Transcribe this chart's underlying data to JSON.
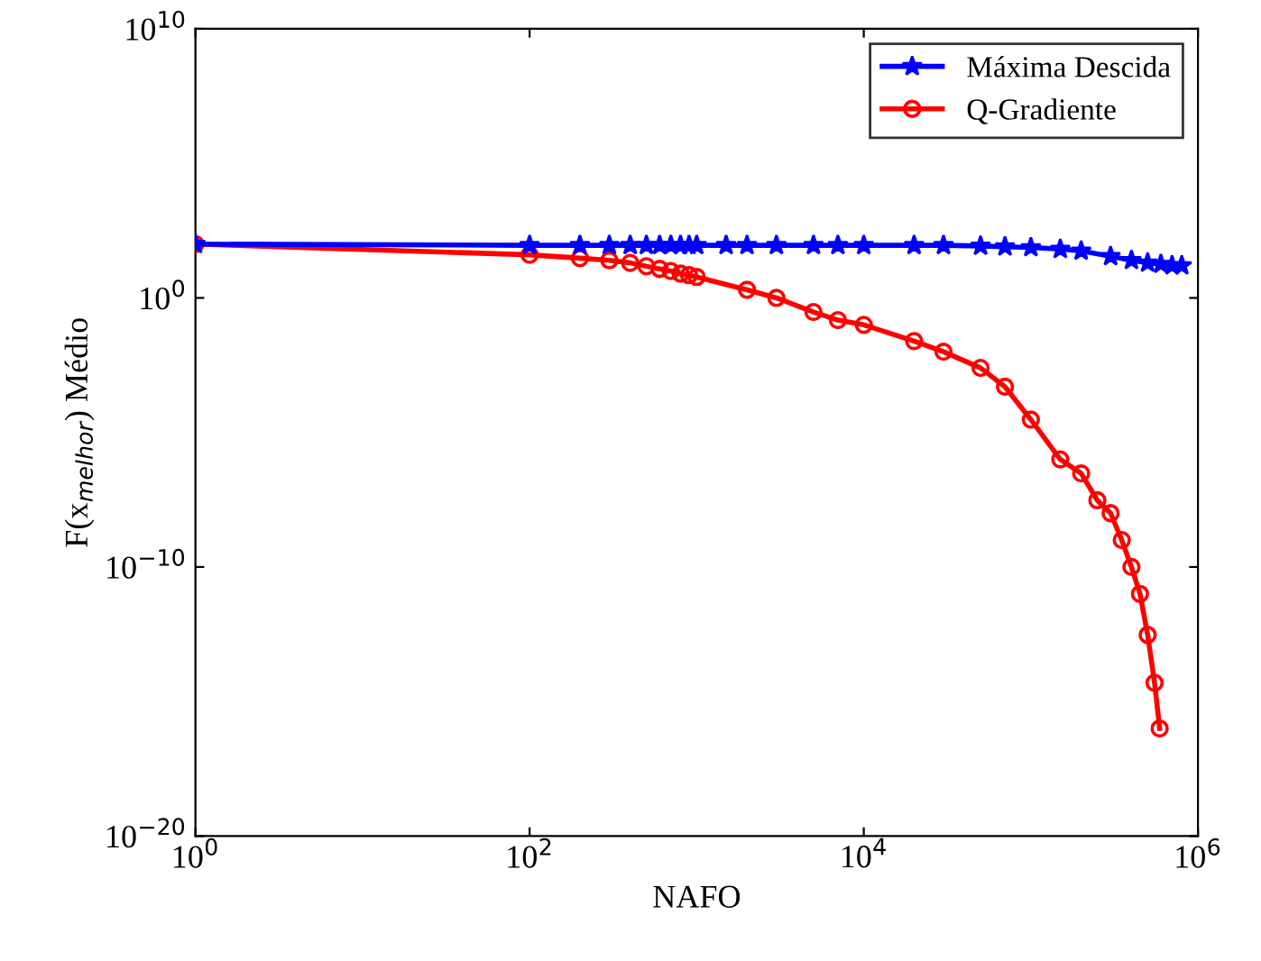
{
  "chart_data": {
    "type": "line",
    "xlabel": "NAFO",
    "ylabel": "F(x$_{melhor}$) Médio",
    "log": "xy",
    "legend": "top right",
    "grid": false,
    "xlim": [
      1,
      1000000
    ],
    "xticks": [
      {
        "value": 1,
        "label": "10$^{0}$"
      },
      {
        "value": 100,
        "label": "10$^{2}$"
      },
      {
        "value": 10000,
        "label": "10$^{4}$"
      },
      {
        "value": 1000000,
        "label": "10$^{6}$"
      }
    ],
    "ylim": [
      1e-20,
      10000000000.0
    ],
    "yticks": [
      {
        "value": 1e-20,
        "label": "10$^{−20}$"
      },
      {
        "value": 1e-10,
        "label": "10$^{−10}$"
      },
      {
        "value": 1,
        "label": "10$^{0}$"
      },
      {
        "value": 10000000000.0,
        "label": "10$^{10}$"
      }
    ],
    "series": [
      {
        "name": "Máxima Descida",
        "color": "#0000ff",
        "marker": "star",
        "x": [
          1,
          100,
          200,
          300,
          400,
          500,
          600,
          700,
          800,
          900,
          1000,
          1500,
          2000,
          3000,
          5000,
          7000,
          10000,
          20000,
          30000,
          50000,
          70000,
          100000,
          150000,
          200000,
          300000,
          400000,
          500000,
          600000,
          700000,
          800000
        ],
        "values": [
          100,
          90,
          90,
          90,
          90,
          90,
          90,
          90,
          90,
          90,
          90,
          90,
          90,
          90,
          90,
          90,
          90,
          90,
          90,
          85,
          80,
          75,
          65,
          56,
          35,
          25,
          20,
          18,
          16,
          16
        ]
      },
      {
        "name": "Q-Gradiente",
        "color": "#ff0000",
        "marker": "circle",
        "x": [
          1,
          100,
          200,
          300,
          400,
          500,
          600,
          700,
          800,
          900,
          1000,
          2000,
          3000,
          5000,
          7000,
          10000,
          20000,
          30000,
          50000,
          70000,
          100000,
          150000,
          200000,
          250000,
          300000,
          350000,
          400000,
          450000,
          500000,
          550000,
          590000
        ],
        "values": [
          100,
          40,
          30,
          25,
          20,
          15,
          12,
          10,
          8,
          7,
          6,
          2,
          1,
          0.3,
          0.15,
          0.1,
          0.025,
          0.01,
          0.0025,
          0.0005,
          3e-05,
          1e-06,
          3e-07,
          3e-08,
          1e-08,
          1e-09,
          1e-10,
          1e-11,
          3e-13,
          5e-15,
          1e-16
        ]
      }
    ]
  }
}
